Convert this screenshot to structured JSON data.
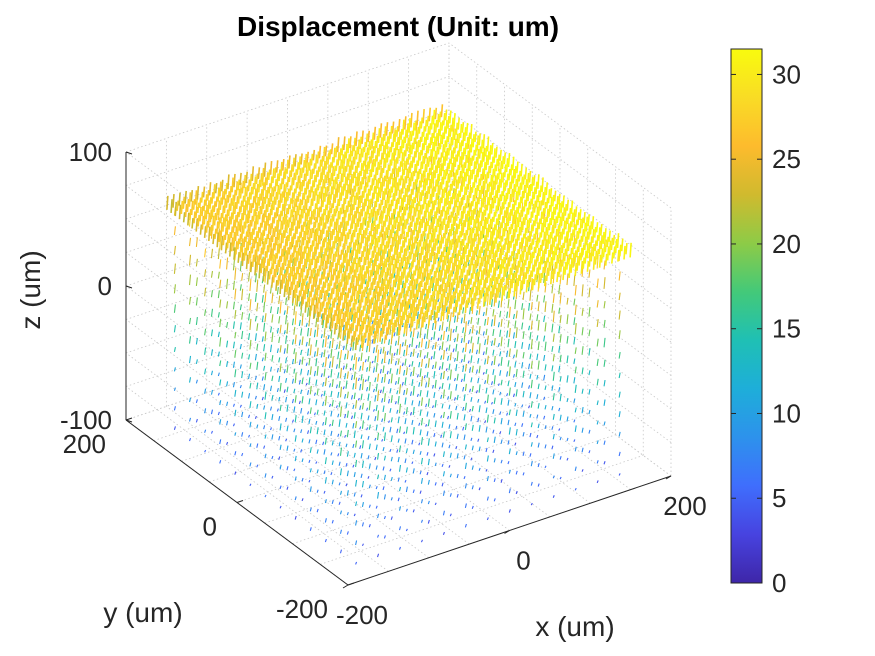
{
  "chart_data": {
    "type": "quiver3d",
    "title": "Displacement (Unit: um)",
    "xlabel": "x (um)",
    "ylabel": "y (um)",
    "zlabel": "z (um)",
    "xlim": [
      -200,
      200
    ],
    "ylim": [
      -200,
      200
    ],
    "zlim": [
      -100,
      100
    ],
    "x_ticks": [
      "-200",
      "0",
      "200"
    ],
    "y_ticks": [
      "-200",
      "0",
      "200"
    ],
    "z_ticks": [
      "-100",
      "0",
      "100"
    ],
    "grid": true,
    "colormap": "parula",
    "colorbar": {
      "location": "right",
      "range": [
        0,
        31.5
      ],
      "ticks": [
        "0",
        "5",
        "10",
        "15",
        "20",
        "25",
        "30"
      ],
      "colors": [
        "#3e26a8",
        "#4743e0",
        "#3f6efd",
        "#2d92ec",
        "#1eaed9",
        "#1fc0b4",
        "#43c979",
        "#8dcb47",
        "#d0ba2e",
        "#fdbb2d",
        "#f9dc25",
        "#f9fb0e"
      ]
    },
    "field": {
      "x_range": [
        -170,
        170
      ],
      "y_range": [
        -170,
        170
      ],
      "z_range": [
        -100,
        60
      ],
      "max_magnitude": 31.5,
      "top_magnitude": 28,
      "description_values": {
        "surface_magnitude": 27,
        "min_magnitude": 5
      }
    }
  }
}
